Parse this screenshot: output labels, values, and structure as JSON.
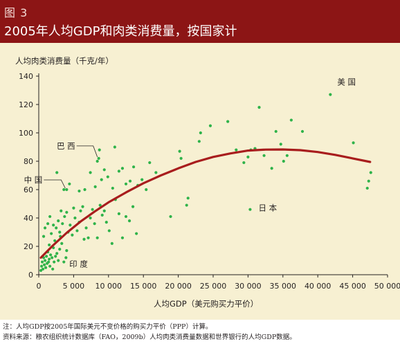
{
  "figure": {
    "label": "图 3",
    "title": "2005年人均GDP和肉类消费量，按国家计"
  },
  "colors": {
    "header": "#8c1515",
    "panel": "#f7f0d2",
    "points": "#2fb34a",
    "curve": "#a81d1d"
  },
  "chart_data": {
    "type": "scatter",
    "ylabel": "人均肉类消费量（千克/年）",
    "xlabel": "人均GDP（美元购买力平价）",
    "xlim": [
      0,
      50000
    ],
    "ylim": [
      0,
      140
    ],
    "xticks": [
      0,
      5000,
      10000,
      15000,
      20000,
      25000,
      30000,
      35000,
      40000,
      45000,
      50000
    ],
    "xtick_labels": [
      "0",
      "5 000",
      "10 000",
      "15 000",
      "20 000",
      "25 000",
      "30 000",
      "35 000",
      "40 000",
      "45 000",
      "50 000"
    ],
    "yticks": [
      0,
      20,
      40,
      60,
      80,
      100,
      120,
      140
    ],
    "ytick_labels": [
      "0",
      "20",
      "40",
      "60",
      "80",
      "100",
      "120",
      "140"
    ],
    "grid": false,
    "annotations": [
      {
        "text": "美 国",
        "x": 41800,
        "y": 127
      },
      {
        "text": "巴 西",
        "x": 8600,
        "y": 82
      },
      {
        "text": "中 国",
        "x": 4000,
        "y": 60
      },
      {
        "text": "日 本",
        "x": 30500,
        "y": 46
      },
      {
        "text": "印 度",
        "x": 2200,
        "y": 6
      }
    ],
    "trend": {
      "x": [
        300,
        2000,
        4000,
        6000,
        8000,
        10000,
        12500,
        15000,
        17500,
        20000,
        22500,
        25000,
        27500,
        30000,
        32500,
        35000,
        37500,
        40000,
        42500,
        45000,
        47500
      ],
      "y": [
        12,
        20.5,
        29.5,
        37.5,
        44.5,
        51,
        58,
        64.5,
        70,
        75,
        79.5,
        83,
        85.5,
        87.5,
        88.2,
        88.3,
        87.8,
        86.5,
        84.5,
        82,
        79.5
      ]
    },
    "points": [
      [
        300,
        3
      ],
      [
        400,
        6
      ],
      [
        500,
        9
      ],
      [
        600,
        4
      ],
      [
        700,
        12
      ],
      [
        800,
        7
      ],
      [
        900,
        10
      ],
      [
        1000,
        5
      ],
      [
        1100,
        13
      ],
      [
        1200,
        8
      ],
      [
        1300,
        16
      ],
      [
        1400,
        9
      ],
      [
        1500,
        11
      ],
      [
        1600,
        6
      ],
      [
        1700,
        14
      ],
      [
        1900,
        12
      ],
      [
        2000,
        4
      ],
      [
        2100,
        19
      ],
      [
        2200,
        9
      ],
      [
        2400,
        13
      ],
      [
        2600,
        15
      ],
      [
        2800,
        10
      ],
      [
        3000,
        18
      ],
      [
        3300,
        22
      ],
      [
        3600,
        9
      ],
      [
        3900,
        12
      ],
      [
        1500,
        21
      ],
      [
        2300,
        24
      ],
      [
        3100,
        27
      ],
      [
        4000,
        17
      ],
      [
        700,
        27
      ],
      [
        900,
        33
      ],
      [
        1600,
        41
      ],
      [
        1300,
        36
      ],
      [
        1800,
        29
      ],
      [
        2100,
        35
      ],
      [
        2500,
        33
      ],
      [
        2800,
        38
      ],
      [
        3000,
        30
      ],
      [
        3200,
        45
      ],
      [
        3400,
        36
      ],
      [
        3700,
        41
      ],
      [
        4000,
        44
      ],
      [
        4200,
        30
      ],
      [
        4500,
        35
      ],
      [
        4800,
        28
      ],
      [
        5000,
        47
      ],
      [
        5200,
        40
      ],
      [
        5500,
        31
      ],
      [
        5800,
        37
      ],
      [
        6000,
        45
      ],
      [
        6300,
        48
      ],
      [
        6500,
        25
      ],
      [
        6800,
        33
      ],
      [
        7100,
        26
      ],
      [
        7400,
        40
      ],
      [
        7700,
        46
      ],
      [
        8000,
        36
      ],
      [
        8400,
        26
      ],
      [
        8800,
        49
      ],
      [
        9100,
        42
      ],
      [
        9400,
        45
      ],
      [
        9700,
        37
      ],
      [
        10100,
        31
      ],
      [
        10500,
        22
      ],
      [
        11000,
        53
      ],
      [
        11500,
        43
      ],
      [
        12000,
        26
      ],
      [
        12500,
        41
      ],
      [
        13000,
        38
      ],
      [
        13500,
        48
      ],
      [
        14000,
        29
      ],
      [
        2600,
        72
      ],
      [
        3600,
        60
      ],
      [
        4400,
        64
      ],
      [
        5800,
        59
      ],
      [
        6600,
        60
      ],
      [
        7400,
        72
      ],
      [
        8100,
        62
      ],
      [
        8400,
        80
      ],
      [
        8700,
        88
      ],
      [
        9000,
        67
      ],
      [
        9400,
        74
      ],
      [
        9900,
        69
      ],
      [
        10600,
        61
      ],
      [
        10900,
        90
      ],
      [
        11500,
        73
      ],
      [
        12000,
        75
      ],
      [
        12500,
        64
      ],
      [
        13100,
        66
      ],
      [
        13600,
        76
      ],
      [
        14200,
        63
      ],
      [
        14800,
        67
      ],
      [
        15400,
        60
      ],
      [
        15900,
        79
      ],
      [
        16800,
        72
      ],
      [
        18900,
        41
      ],
      [
        20200,
        87
      ],
      [
        20400,
        82
      ],
      [
        21200,
        49
      ],
      [
        21400,
        54
      ],
      [
        23000,
        94
      ],
      [
        23200,
        100
      ],
      [
        24600,
        105
      ],
      [
        27100,
        108
      ],
      [
        28300,
        88
      ],
      [
        29400,
        79
      ],
      [
        30000,
        83
      ],
      [
        30400,
        88
      ],
      [
        31000,
        89
      ],
      [
        31600,
        118
      ],
      [
        32300,
        84
      ],
      [
        33400,
        75
      ],
      [
        34000,
        101
      ],
      [
        34700,
        92
      ],
      [
        35100,
        80
      ],
      [
        35600,
        84
      ],
      [
        36200,
        109
      ],
      [
        37800,
        101
      ],
      [
        45100,
        93
      ],
      [
        47100,
        61
      ],
      [
        47300,
        66
      ],
      [
        47600,
        72
      ],
      [
        30300,
        46
      ],
      [
        41800,
        127
      ],
      [
        8600,
        82
      ],
      [
        4000,
        60
      ]
    ]
  },
  "notes": [
    "注：人均GDP按2005年国际美元不变价格的购买力平价（PPP）计算。",
    "资料来源：粮农组织统计数据库（FAO，2009b）人均肉类消费量数据和世界银行的人均GDP数据。"
  ]
}
